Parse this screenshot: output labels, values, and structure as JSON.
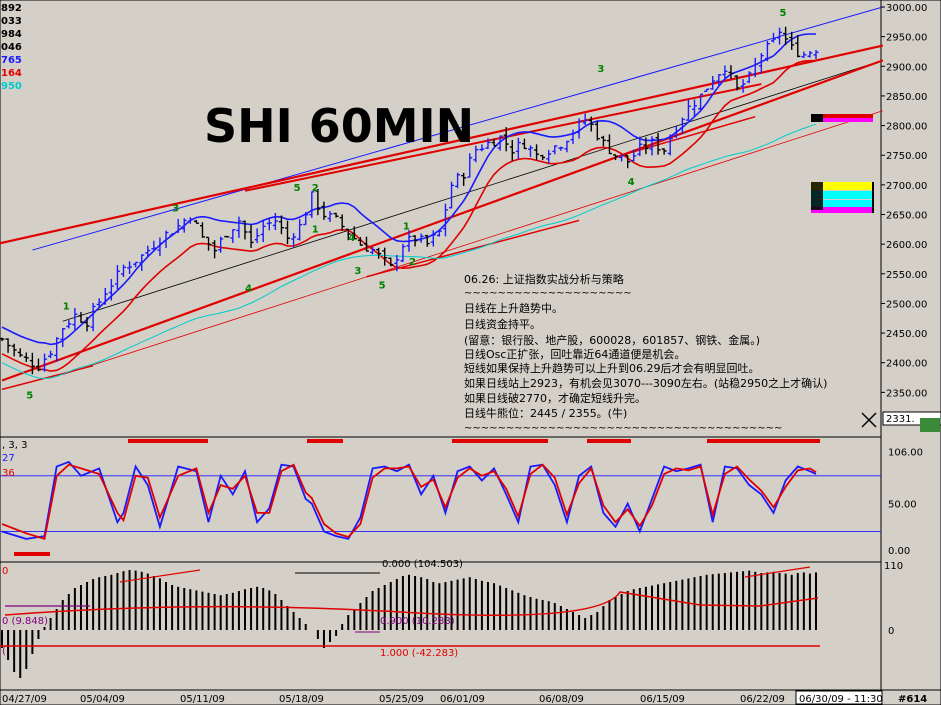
{
  "chart_data": [
    {
      "type": "candlestick",
      "title": "SHI 60MIN",
      "ylim": [
        2300,
        3000
      ],
      "y_ticks": [
        "3000.00",
        "2950.00",
        "2900.00",
        "2850.00",
        "2800.00",
        "2750.00",
        "2700.00",
        "2650.00",
        "2600.00",
        "2550.00",
        "2500.00",
        "2450.00",
        "2400.00",
        "2350.00"
      ],
      "y_tick_values": [
        3000,
        2950,
        2900,
        2850,
        2800,
        2750,
        2700,
        2650,
        2600,
        2550,
        2500,
        2450,
        2400,
        2350
      ],
      "last_price_label": "2331.",
      "left_values": [
        {
          "text": "892",
          "color": "#000000"
        },
        {
          "text": "033",
          "color": "#000000"
        },
        {
          "text": "984",
          "color": "#000000"
        },
        {
          "text": "046",
          "color": "#000000"
        },
        {
          "text": "765",
          "color": "#1a1aff"
        },
        {
          "text": "164",
          "color": "#e00000"
        },
        {
          "text": "950",
          "color": "#00cccc"
        }
      ],
      "close_path": [
        [
          0,
          2440
        ],
        [
          3,
          2410
        ],
        [
          6,
          2395
        ],
        [
          8,
          2420
        ],
        [
          10,
          2460
        ],
        [
          12,
          2480
        ],
        [
          14,
          2470
        ],
        [
          17,
          2520
        ],
        [
          20,
          2560
        ],
        [
          23,
          2580
        ],
        [
          26,
          2610
        ],
        [
          29,
          2630
        ],
        [
          31,
          2650
        ],
        [
          33,
          2610
        ],
        [
          35,
          2590
        ],
        [
          37,
          2620
        ],
        [
          39,
          2640
        ],
        [
          41,
          2600
        ],
        [
          43,
          2630
        ],
        [
          45,
          2640
        ],
        [
          47,
          2610
        ],
        [
          49,
          2630
        ],
        [
          51,
          2680
        ],
        [
          53,
          2650
        ],
        [
          55,
          2640
        ],
        [
          57,
          2620
        ],
        [
          59,
          2600
        ],
        [
          61,
          2590
        ],
        [
          63,
          2570
        ],
        [
          64,
          2560
        ],
        [
          66,
          2600
        ],
        [
          68,
          2610
        ],
        [
          70,
          2600
        ],
        [
          72,
          2620
        ],
        [
          74,
          2700
        ],
        [
          76,
          2720
        ],
        [
          78,
          2760
        ],
        [
          80,
          2770
        ],
        [
          82,
          2780
        ],
        [
          84,
          2760
        ],
        [
          86,
          2770
        ],
        [
          88,
          2750
        ],
        [
          90,
          2760
        ],
        [
          92,
          2770
        ],
        [
          94,
          2790
        ],
        [
          96,
          2810
        ],
        [
          97,
          2800
        ],
        [
          99,
          2770
        ],
        [
          101,
          2750
        ],
        [
          103,
          2740
        ],
        [
          105,
          2760
        ],
        [
          107,
          2770
        ],
        [
          109,
          2760
        ],
        [
          111,
          2800
        ],
        [
          113,
          2830
        ],
        [
          115,
          2850
        ],
        [
          117,
          2880
        ],
        [
          119,
          2900
        ],
        [
          121,
          2860
        ],
        [
          123,
          2880
        ],
        [
          125,
          2920
        ],
        [
          127,
          2940
        ],
        [
          128,
          2960
        ],
        [
          130,
          2930
        ],
        [
          132,
          2920
        ],
        [
          134,
          2930
        ]
      ],
      "wave_labels": [
        {
          "text": "5",
          "x": 4,
          "y": 2340
        },
        {
          "text": "1",
          "x": 10,
          "y": 2490
        },
        {
          "text": "3",
          "x": 28,
          "y": 2655
        },
        {
          "text": "4",
          "x": 40,
          "y": 2520
        },
        {
          "text": "5",
          "x": 48,
          "y": 2690
        },
        {
          "text": "2",
          "x": 51,
          "y": 2690
        },
        {
          "text": "1",
          "x": 51,
          "y": 2620
        },
        {
          "text": "4",
          "x": 57,
          "y": 2605
        },
        {
          "text": "3",
          "x": 58,
          "y": 2550
        },
        {
          "text": "5",
          "x": 62,
          "y": 2525
        },
        {
          "text": "1",
          "x": 66,
          "y": 2625
        },
        {
          "text": "2",
          "x": 67,
          "y": 2565
        },
        {
          "text": "3",
          "x": 98,
          "y": 2890
        },
        {
          "text": "4",
          "x": 103,
          "y": 2700
        },
        {
          "text": "5",
          "x": 128,
          "y": 2985
        }
      ]
    },
    {
      "type": "line",
      "indicator": "Stochastic",
      "params_label": ", 3, 3",
      "legend_values": [
        {
          "text": "27",
          "color": "#1a1aff"
        },
        {
          "text": "36",
          "color": "#e00000"
        }
      ],
      "ylim": [
        0,
        110
      ],
      "y_ticks": [
        "106.00",
        "50.00",
        "0.00"
      ],
      "y_tick_values": [
        106,
        50,
        0
      ],
      "reference_lines": [
        80,
        20
      ],
      "series": [
        {
          "name": "27",
          "color": "#1a1aff",
          "x": [
            0,
            4,
            7,
            9,
            11,
            13,
            16,
            19,
            20,
            22,
            24,
            26,
            29,
            32,
            34,
            36,
            38,
            40,
            42,
            44,
            46,
            48,
            50,
            51,
            53,
            55,
            57,
            59,
            61,
            63,
            65,
            67,
            69,
            71,
            73,
            75,
            77,
            79,
            81,
            83,
            85,
            87,
            89,
            91,
            93,
            95,
            97,
            99,
            101,
            103,
            105,
            107,
            109,
            111,
            113,
            115,
            117,
            119,
            121,
            123,
            125,
            127,
            129,
            131,
            133,
            134
          ],
          "values": [
            20,
            12,
            15,
            90,
            95,
            80,
            88,
            30,
            40,
            90,
            70,
            25,
            90,
            85,
            30,
            80,
            60,
            85,
            30,
            45,
            92,
            90,
            55,
            50,
            20,
            15,
            12,
            35,
            88,
            90,
            85,
            92,
            60,
            80,
            40,
            85,
            90,
            75,
            88,
            60,
            30,
            90,
            92,
            70,
            30,
            80,
            90,
            40,
            25,
            50,
            20,
            55,
            90,
            85,
            88,
            92,
            30,
            90,
            88,
            70,
            60,
            40,
            75,
            90,
            85,
            82
          ]
        },
        {
          "name": "36",
          "color": "#e00000",
          "x": [
            0,
            4,
            7,
            9,
            11,
            13,
            16,
            19,
            20,
            22,
            24,
            26,
            29,
            32,
            34,
            36,
            38,
            40,
            42,
            44,
            46,
            48,
            50,
            51,
            53,
            55,
            57,
            59,
            61,
            63,
            65,
            67,
            69,
            71,
            73,
            75,
            77,
            79,
            81,
            83,
            85,
            87,
            89,
            91,
            93,
            95,
            97,
            99,
            101,
            103,
            105,
            107,
            109,
            111,
            113,
            115,
            117,
            119,
            121,
            123,
            125,
            127,
            129,
            131,
            133,
            134
          ],
          "values": [
            28,
            18,
            12,
            80,
            92,
            88,
            82,
            40,
            32,
            80,
            78,
            35,
            80,
            88,
            40,
            70,
            66,
            80,
            40,
            40,
            85,
            92,
            62,
            56,
            28,
            18,
            14,
            28,
            78,
            88,
            88,
            90,
            68,
            76,
            46,
            78,
            88,
            80,
            85,
            66,
            36,
            82,
            92,
            78,
            38,
            72,
            88,
            48,
            30,
            44,
            26,
            48,
            82,
            88,
            86,
            90,
            38,
            82,
            90,
            76,
            64,
            46,
            68,
            86,
            88,
            84
          ]
        }
      ]
    },
    {
      "type": "bar",
      "indicator": "Oscillator",
      "top_value": "110",
      "y_ticks": [
        "0"
      ],
      "y_tick_values": [
        0
      ],
      "left_labels": [
        {
          "text": "0",
          "color": "#e00000"
        },
        {
          "text": "0 (9.848)",
          "color": "#800080"
        },
        {
          "text": "(",
          "color": "#800080"
        }
      ],
      "annotations": [
        {
          "text": "0.000 (104.503)",
          "color": "#000000"
        },
        {
          "text": "0.900 (10.283)",
          "color": "#800080"
        },
        {
          "text": "1.000 (-42.283)",
          "color": "#e00000"
        }
      ],
      "values": [
        -30,
        -50,
        -70,
        -80,
        -65,
        -40,
        -15,
        5,
        20,
        35,
        50,
        60,
        70,
        75,
        80,
        85,
        88,
        90,
        92,
        95,
        98,
        100,
        99,
        97,
        94,
        90,
        86,
        80,
        75,
        72,
        70,
        68,
        66,
        64,
        62,
        60,
        58,
        60,
        62,
        65,
        68,
        70,
        72,
        70,
        66,
        60,
        50,
        40,
        30,
        20,
        10,
        0,
        -15,
        -30,
        -20,
        -10,
        10,
        25,
        35,
        45,
        55,
        65,
        70,
        75,
        80,
        85,
        90,
        92,
        90,
        88,
        85,
        80,
        78,
        80,
        82,
        84,
        86,
        88,
        85,
        82,
        80,
        78,
        74,
        70,
        66,
        62,
        58,
        55,
        52,
        50,
        48,
        45,
        40,
        35,
        30,
        25,
        20,
        25,
        30,
        40,
        50,
        55,
        60,
        65,
        68,
        70,
        72,
        74,
        76,
        78,
        80,
        82,
        84,
        86,
        88,
        90,
        92,
        93,
        94,
        95,
        96,
        97,
        98,
        99,
        97,
        95,
        96,
        97,
        95,
        94,
        92,
        95,
        96,
        94,
        96
      ]
    }
  ],
  "annotation_text": {
    "heading": "06.26: 上证指数实战分析与策略",
    "separator": "~~~~~~~~~~~~~~~~~~~~",
    "lines": [
      "日线在上升趋势中。",
      "日线资金持平。",
      "(留意：银行股、地产股，600028，601857、钢铁、金属。)",
      "日线Osc正扩张，回吐靠近64通道便是机会。",
      "短线如果保持上升趋势可以上升到06.29后才会有明显回吐。",
      "如果日线站上2923，有机会见3070---3090左右。(站稳2950之上才确认)",
      "如果日线破2770，才确定短线升完。",
      "日线牛熊位：2445 / 2355。(牛)"
    ],
    "footer_separator": "~~~~~~~~~~~~~~~~~~~~~~~~~~~~~~~~~~~~~~"
  },
  "x_axis": {
    "labels": [
      "04/27/09",
      "05/04/09",
      "05/11/09",
      "05/18/09",
      "05/25/09",
      "06/01/09",
      "06/08/09",
      "06/15/09",
      "06/22/09"
    ],
    "current_label": "06/30/09 - 11:30",
    "id_label": "#614"
  },
  "colors": {
    "background": "#d4d0c8",
    "up_bar": "#1a1aff",
    "down_bar": "#000000",
    "trend_red": "#e00000",
    "channel_blue": "#1a1aff",
    "cyan": "#00cccc",
    "magenta": "#ff00ff",
    "yellow": "#ffff00",
    "green_label": "#008000"
  }
}
